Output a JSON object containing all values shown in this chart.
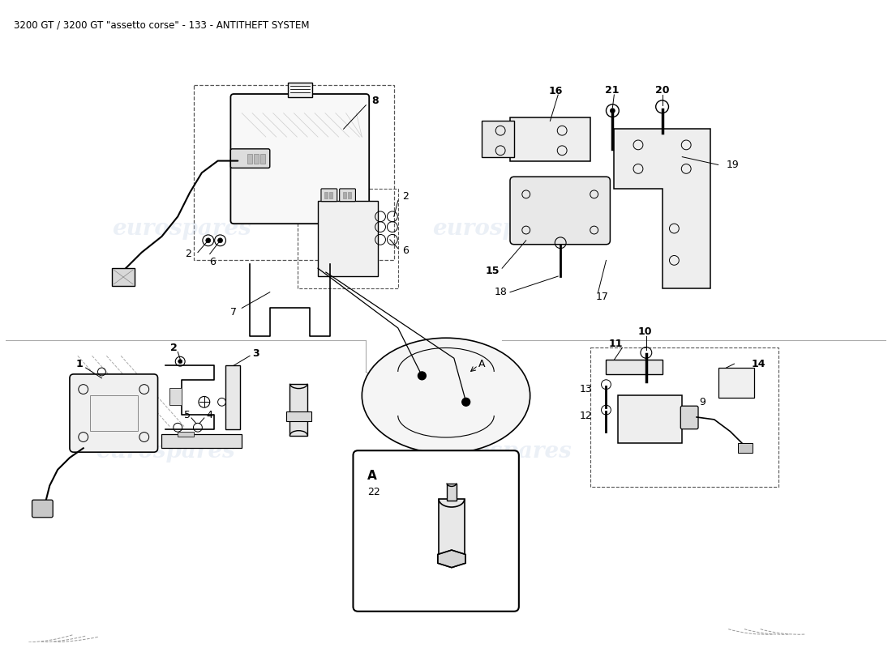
{
  "title": "3200 GT / 3200 GT \"assetto corse\" - 133 - ANTITHEFT SYSTEM",
  "title_fontsize": 8.5,
  "title_color": "#000000",
  "background_color": "#ffffff",
  "watermark_text": "eurospares",
  "watermark_color": "#c8d4e8",
  "watermark_alpha": 0.35,
  "fig_width": 11.0,
  "fig_height": 8.0,
  "dpi": 100
}
